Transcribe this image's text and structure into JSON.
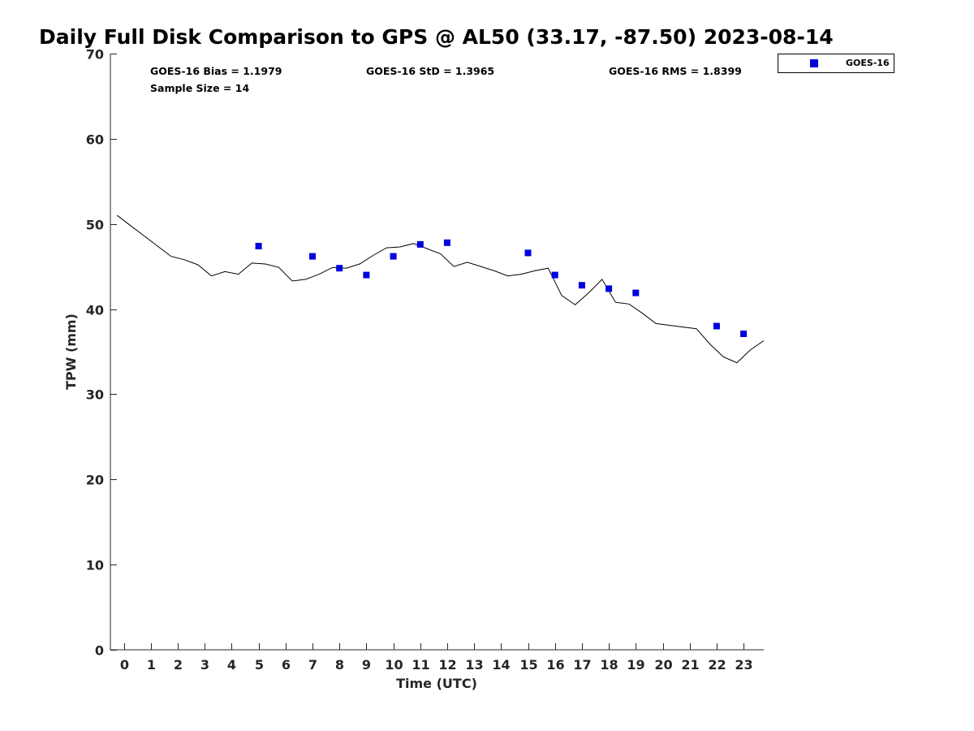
{
  "chart_data": {
    "type": "scatter",
    "title": "Daily Full Disk Comparison to GPS @ AL50 (33.17, -87.50) 2023-08-14",
    "xlabel": "Time (UTC)",
    "ylabel": "TPW (mm)",
    "xlim": [
      -0.5,
      23.75
    ],
    "ylim": [
      0,
      70
    ],
    "x_ticks": [
      0,
      1,
      2,
      3,
      4,
      5,
      6,
      7,
      8,
      9,
      10,
      11,
      12,
      13,
      14,
      15,
      16,
      17,
      18,
      19,
      20,
      21,
      22,
      23
    ],
    "y_ticks": [
      0,
      10,
      20,
      30,
      40,
      50,
      60,
      70
    ],
    "grid": false,
    "legend_position": "top-right outside",
    "stats": {
      "bias": "GOES-16 Bias = 1.1979",
      "std": "GOES-16 StD = 1.3965",
      "rms": "GOES-16 RMS = 1.8399",
      "sample": "Sample Size = 14"
    },
    "series": [
      {
        "name": "GOES-16",
        "kind": "scatter",
        "marker": "square",
        "color": "#0000dd",
        "x": [
          5,
          7,
          8,
          9,
          10,
          11,
          12,
          15,
          16,
          17,
          18,
          19,
          22,
          23
        ],
        "y": [
          47.4,
          46.2,
          44.8,
          44.0,
          46.2,
          47.6,
          47.8,
          46.6,
          44.0,
          42.8,
          42.4,
          41.9,
          38.0,
          37.1
        ]
      },
      {
        "kind": "line",
        "color": "#000000",
        "x": [
          -0.25,
          0.25,
          0.75,
          1.25,
          1.75,
          2.25,
          2.75,
          3.25,
          3.75,
          4.25,
          4.75,
          5.25,
          5.75,
          6.25,
          6.75,
          7.25,
          7.75,
          8.25,
          8.75,
          9.25,
          9.75,
          10.25,
          10.75,
          11.25,
          11.75,
          12.25,
          12.75,
          13.25,
          13.75,
          14.25,
          14.75,
          15.25,
          15.75,
          16.25,
          16.75,
          17.25,
          17.75,
          18.25,
          18.75,
          19.25,
          19.75,
          20.25,
          20.75,
          21.25,
          21.75,
          22.25,
          22.75,
          23.25,
          23.75
        ],
        "y": [
          51.0,
          49.8,
          48.6,
          47.4,
          46.2,
          45.8,
          45.2,
          43.9,
          44.4,
          44.1,
          45.4,
          45.3,
          44.9,
          43.3,
          43.5,
          44.1,
          44.9,
          44.8,
          45.3,
          46.3,
          47.2,
          47.3,
          47.7,
          47.1,
          46.5,
          45.0,
          45.5,
          45.0,
          44.5,
          43.9,
          44.1,
          44.5,
          44.8,
          41.6,
          40.5,
          41.9,
          43.5,
          40.8,
          40.6,
          39.5,
          38.3,
          38.1,
          37.9,
          37.7,
          35.9,
          34.4,
          33.7,
          35.2,
          36.3
        ]
      }
    ]
  }
}
